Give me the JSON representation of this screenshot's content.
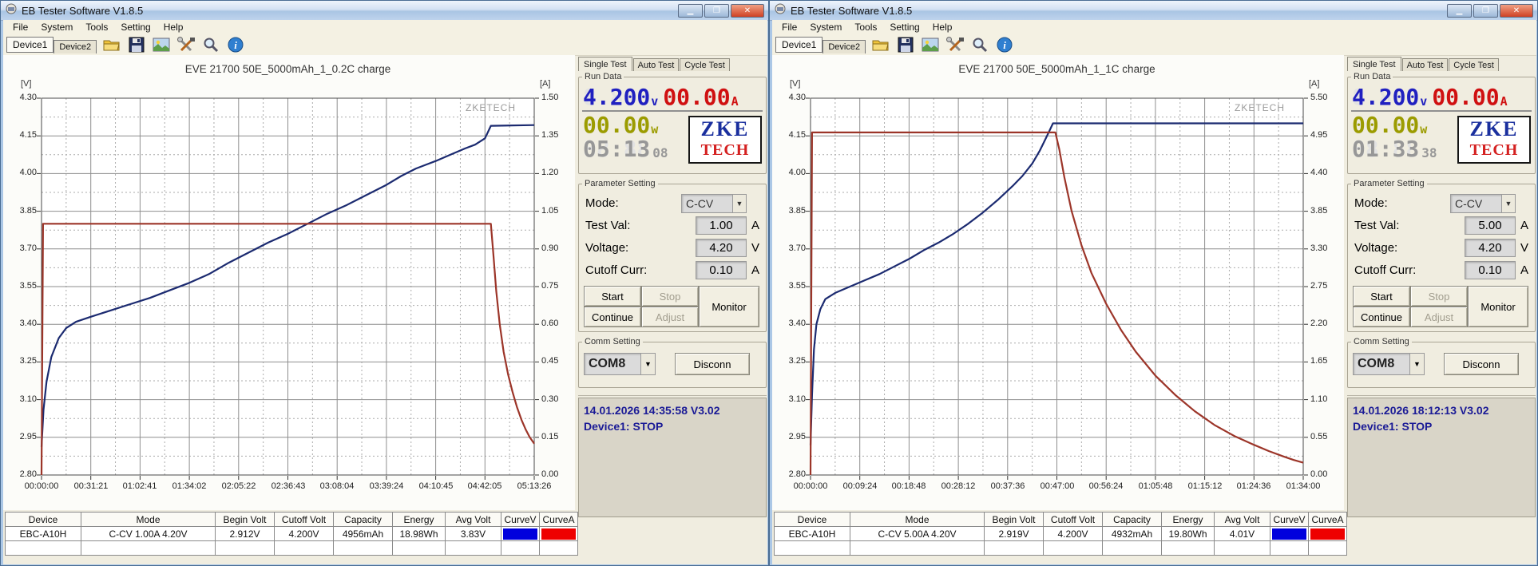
{
  "windows": [
    {
      "titlebar": {
        "title": "EB Tester Software V1.8.5"
      },
      "menu": [
        "File",
        "System",
        "Tools",
        "Setting",
        "Help"
      ],
      "device_tabs": [
        "Device1",
        "Device2"
      ],
      "side_tabs": [
        "Single Test",
        "Auto Test",
        "Cycle Test"
      ],
      "run_data": {
        "legend": "Run Data",
        "voltage": "4.200",
        "voltage_unit": "v",
        "current": "00.00",
        "current_unit": "A",
        "power": "00.00",
        "power_unit": "w",
        "time": "05:13",
        "time_sec": "08",
        "logo_top": "ZKE",
        "logo_bottom": "TECH"
      },
      "parameter": {
        "legend": "Parameter Setting",
        "mode_label": "Mode:",
        "mode_value": "C-CV",
        "test_val_label": "Test Val:",
        "test_val": "1.00",
        "test_val_unit": "A",
        "voltage_label": "Voltage:",
        "voltage": "4.20",
        "voltage_unit": "V",
        "cutoff_label": "Cutoff Curr:",
        "cutoff": "0.10",
        "cutoff_unit": "A",
        "buttons": {
          "start": "Start",
          "stop": "Stop",
          "continue": "Continue",
          "adjust": "Adjust",
          "monitor": "Monitor"
        }
      },
      "comm": {
        "legend": "Comm Setting",
        "port": "COM8",
        "disconnect": "Disconn"
      },
      "status": {
        "line1": "14.01.2026 14:35:58  V3.02",
        "line2": "Device1: STOP"
      },
      "table": {
        "headers": [
          "Device",
          "Mode",
          "Begin Volt",
          "Cutoff Volt",
          "Capacity",
          "Energy",
          "Avg Volt",
          "CurveV",
          "CurveA"
        ],
        "row": [
          "EBC-A10H",
          "C-CV 1.00A  4.20V",
          "2.912V",
          "4.200V",
          "4956mAh",
          "18.98Wh",
          "3.83V"
        ],
        "curve_v_color": "#0000dd",
        "curve_a_color": "#ee0000"
      },
      "chart_data": {
        "type": "line",
        "title": "EVE 21700 50E_5000mAh_1_0.2C charge",
        "watermark": "ZKETECH",
        "y_left": {
          "unit": "[V]",
          "min": 2.8,
          "max": 4.3,
          "step": 0.15
        },
        "y_right": {
          "unit": "[A]",
          "min": 0.0,
          "max": 1.5,
          "step": 0.15
        },
        "x_labels": [
          "00:00:00",
          "00:31:21",
          "01:02:41",
          "01:34:02",
          "02:05:22",
          "02:36:43",
          "03:08:04",
          "03:39:24",
          "04:10:45",
          "04:42:05",
          "05:13:26"
        ],
        "series": [
          {
            "name": "Voltage",
            "color": "#1b2a70",
            "axis": "left",
            "points": [
              [
                0,
                2.912
              ],
              [
                0.004,
                3.06
              ],
              [
                0.01,
                3.17
              ],
              [
                0.02,
                3.27
              ],
              [
                0.035,
                3.345
              ],
              [
                0.05,
                3.385
              ],
              [
                0.07,
                3.41
              ],
              [
                0.1,
                3.43
              ],
              [
                0.14,
                3.455
              ],
              [
                0.18,
                3.48
              ],
              [
                0.22,
                3.505
              ],
              [
                0.26,
                3.535
              ],
              [
                0.3,
                3.565
              ],
              [
                0.34,
                3.6
              ],
              [
                0.38,
                3.645
              ],
              [
                0.42,
                3.685
              ],
              [
                0.46,
                3.725
              ],
              [
                0.5,
                3.76
              ],
              [
                0.54,
                3.8
              ],
              [
                0.58,
                3.84
              ],
              [
                0.62,
                3.875
              ],
              [
                0.66,
                3.915
              ],
              [
                0.7,
                3.955
              ],
              [
                0.73,
                3.99
              ],
              [
                0.76,
                4.02
              ],
              [
                0.78,
                4.035
              ],
              [
                0.8,
                4.05
              ],
              [
                0.83,
                4.075
              ],
              [
                0.86,
                4.1
              ],
              [
                0.88,
                4.115
              ],
              [
                0.9,
                4.14
              ],
              [
                0.906,
                4.165
              ],
              [
                0.912,
                4.19
              ],
              [
                1.0,
                4.193
              ]
            ]
          },
          {
            "name": "Current",
            "color": "#9c3529",
            "axis": "right",
            "points": [
              [
                0,
                0
              ],
              [
                0.003,
                1.0
              ],
              [
                0.912,
                1.0
              ],
              [
                0.917,
                0.88
              ],
              [
                0.923,
                0.73
              ],
              [
                0.93,
                0.6
              ],
              [
                0.938,
                0.49
              ],
              [
                0.947,
                0.4
              ],
              [
                0.956,
                0.33
              ],
              [
                0.965,
                0.27
              ],
              [
                0.974,
                0.22
              ],
              [
                0.983,
                0.18
              ],
              [
                0.991,
                0.15
              ],
              [
                1.0,
                0.125
              ]
            ]
          }
        ]
      }
    },
    {
      "titlebar": {
        "title": "EB Tester Software V1.8.5"
      },
      "menu": [
        "File",
        "System",
        "Tools",
        "Setting",
        "Help"
      ],
      "device_tabs": [
        "Device1",
        "Device2"
      ],
      "side_tabs": [
        "Single Test",
        "Auto Test",
        "Cycle Test"
      ],
      "run_data": {
        "legend": "Run Data",
        "voltage": "4.200",
        "voltage_unit": "v",
        "current": "00.00",
        "current_unit": "A",
        "power": "00.00",
        "power_unit": "w",
        "time": "01:33",
        "time_sec": "38",
        "logo_top": "ZKE",
        "logo_bottom": "TECH"
      },
      "parameter": {
        "legend": "Parameter Setting",
        "mode_label": "Mode:",
        "mode_value": "C-CV",
        "test_val_label": "Test Val:",
        "test_val": "5.00",
        "test_val_unit": "A",
        "voltage_label": "Voltage:",
        "voltage": "4.20",
        "voltage_unit": "V",
        "cutoff_label": "Cutoff Curr:",
        "cutoff": "0.10",
        "cutoff_unit": "A",
        "buttons": {
          "start": "Start",
          "stop": "Stop",
          "continue": "Continue",
          "adjust": "Adjust",
          "monitor": "Monitor"
        }
      },
      "comm": {
        "legend": "Comm Setting",
        "port": "COM8",
        "disconnect": "Disconn"
      },
      "status": {
        "line1": "14.01.2026 18:12:13  V3.02",
        "line2": "Device1: STOP"
      },
      "table": {
        "headers": [
          "Device",
          "Mode",
          "Begin Volt",
          "Cutoff Volt",
          "Capacity",
          "Energy",
          "Avg Volt",
          "CurveV",
          "CurveA"
        ],
        "row": [
          "EBC-A10H",
          "C-CV 5.00A  4.20V",
          "2.919V",
          "4.200V",
          "4932mAh",
          "19.80Wh",
          "4.01V"
        ],
        "curve_v_color": "#0000dd",
        "curve_a_color": "#ee0000"
      },
      "chart_data": {
        "type": "line",
        "title": "EVE 21700 50E_5000mAh_1_1C charge",
        "watermark": "ZKETECH",
        "y_left": {
          "unit": "[V]",
          "min": 2.8,
          "max": 4.3,
          "step": 0.15
        },
        "y_right": {
          "unit": "[A]",
          "min": 0.0,
          "max": 5.5,
          "step": 0.55
        },
        "x_labels": [
          "00:00:00",
          "00:09:24",
          "00:18:48",
          "00:28:12",
          "00:37:36",
          "00:47:00",
          "00:56:24",
          "01:05:48",
          "01:15:12",
          "01:24:36",
          "01:34:00"
        ],
        "series": [
          {
            "name": "Voltage",
            "color": "#1b2a70",
            "axis": "left",
            "points": [
              [
                0,
                2.919
              ],
              [
                0.003,
                3.12
              ],
              [
                0.007,
                3.3
              ],
              [
                0.012,
                3.4
              ],
              [
                0.02,
                3.46
              ],
              [
                0.03,
                3.5
              ],
              [
                0.05,
                3.525
              ],
              [
                0.08,
                3.55
              ],
              [
                0.11,
                3.575
              ],
              [
                0.14,
                3.6
              ],
              [
                0.17,
                3.63
              ],
              [
                0.2,
                3.66
              ],
              [
                0.23,
                3.695
              ],
              [
                0.26,
                3.725
              ],
              [
                0.29,
                3.76
              ],
              [
                0.32,
                3.8
              ],
              [
                0.35,
                3.845
              ],
              [
                0.38,
                3.895
              ],
              [
                0.41,
                3.95
              ],
              [
                0.43,
                3.99
              ],
              [
                0.45,
                4.04
              ],
              [
                0.465,
                4.09
              ],
              [
                0.475,
                4.13
              ],
              [
                0.485,
                4.17
              ],
              [
                0.492,
                4.2
              ],
              [
                1.0,
                4.2
              ]
            ]
          },
          {
            "name": "Current",
            "color": "#9c3529",
            "axis": "right",
            "points": [
              [
                0,
                0
              ],
              [
                0.003,
                5.0
              ],
              [
                0.497,
                5.0
              ],
              [
                0.505,
                4.75
              ],
              [
                0.515,
                4.35
              ],
              [
                0.53,
                3.85
              ],
              [
                0.55,
                3.35
              ],
              [
                0.57,
                2.95
              ],
              [
                0.6,
                2.5
              ],
              [
                0.63,
                2.12
              ],
              [
                0.66,
                1.8
              ],
              [
                0.7,
                1.45
              ],
              [
                0.74,
                1.17
              ],
              [
                0.78,
                0.93
              ],
              [
                0.82,
                0.73
              ],
              [
                0.86,
                0.57
              ],
              [
                0.9,
                0.44
              ],
              [
                0.93,
                0.35
              ],
              [
                0.96,
                0.27
              ],
              [
                0.98,
                0.22
              ],
              [
                1.0,
                0.18
              ]
            ]
          }
        ]
      }
    }
  ]
}
